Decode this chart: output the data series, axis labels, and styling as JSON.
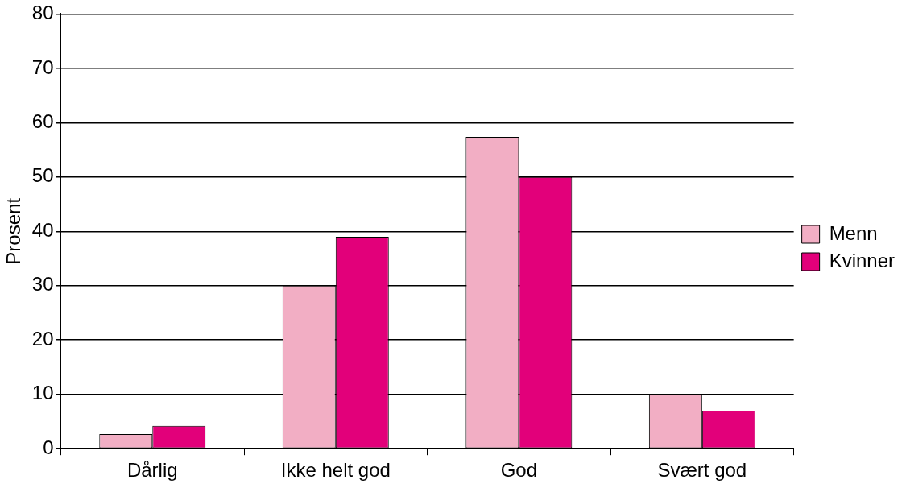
{
  "chart_data": {
    "type": "bar",
    "ylabel": "Prosent",
    "categories": [
      "Dårlig",
      "Ikke helt god",
      "God",
      "Svært god"
    ],
    "series": [
      {
        "name": "Menn",
        "color": "#f2aec4",
        "values": [
          2.7,
          30,
          57.4,
          10
        ]
      },
      {
        "name": "Kvinner",
        "color": "#e2007a",
        "values": [
          4.2,
          39,
          50,
          7
        ]
      }
    ],
    "ylim": [
      0,
      80
    ],
    "yticks": [
      0,
      10,
      20,
      30,
      40,
      50,
      60,
      70,
      80
    ],
    "grid": "y",
    "legend": "right"
  }
}
